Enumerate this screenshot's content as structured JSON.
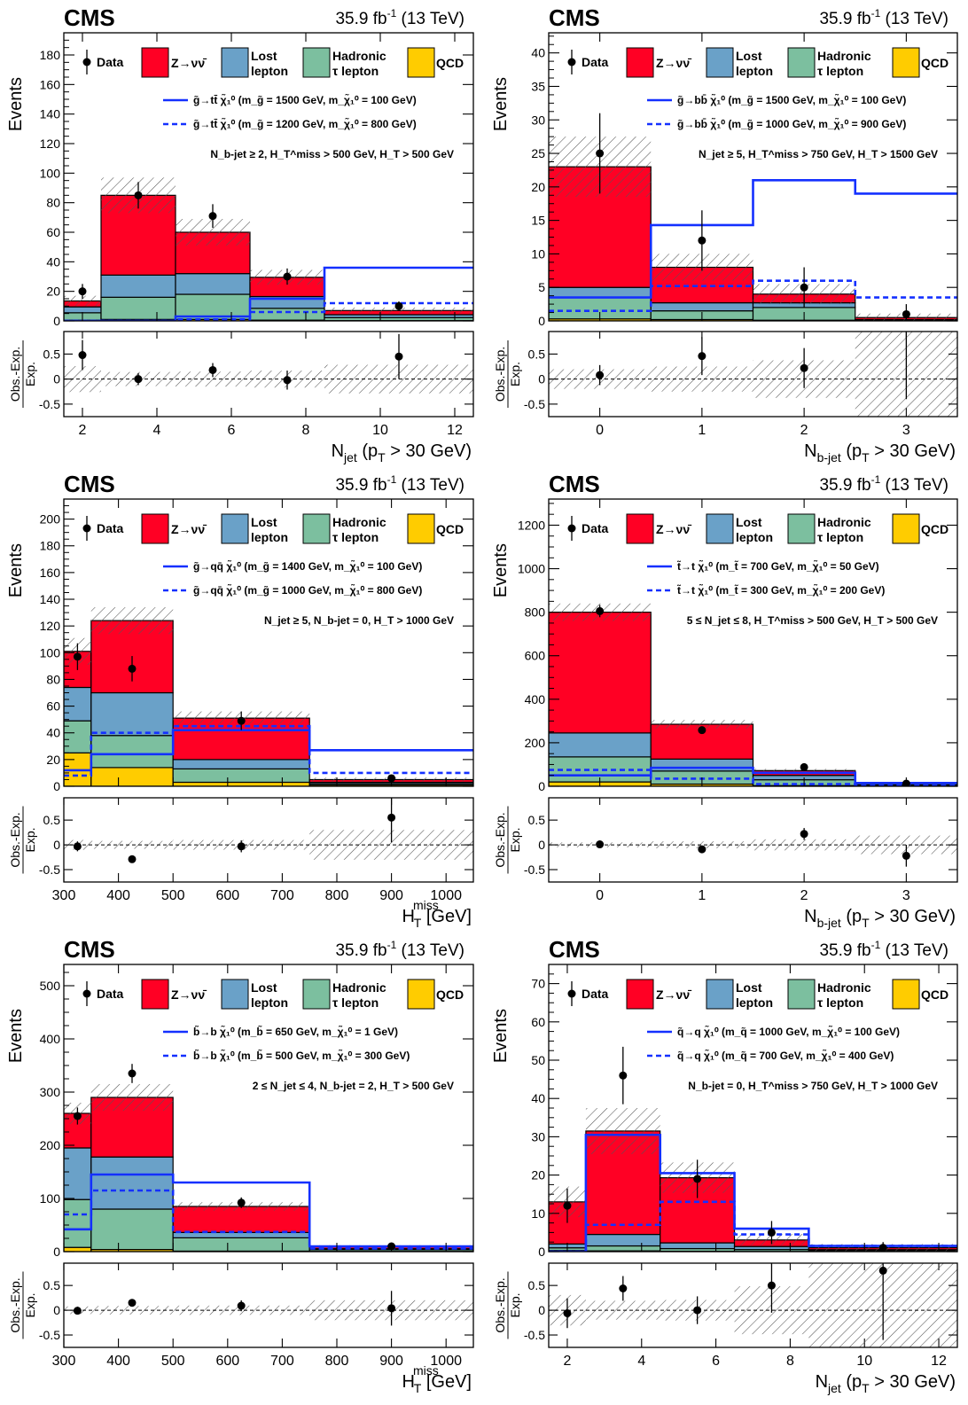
{
  "colors": {
    "znunu": "#ff0024",
    "lostlep": "#6aa1c8",
    "tau": "#7cbf9f",
    "qcd": "#ffcc00",
    "signal": "#1430ff"
  },
  "chart_data": [
    {
      "type": "bar",
      "cms": "CMS",
      "lumi": "35.9 fb",
      "lumi_sup": "-1",
      "lumi_tail": " (13 TeV)",
      "xlabel": "N",
      "xlabel_sub": "jet",
      "xlabel_rest": " (p",
      "xlabel_sub2": "T",
      "xlabel_rest2": " > 30 GeV)",
      "ylabel": "Events",
      "ratio_ylabel_num": "Obs.-Exp.",
      "ratio_ylabel_den": "Exp.",
      "legend": {
        "data": "Data",
        "znunu": "Z→νν̄",
        "lost1": "Lost",
        "lost2": "lepton",
        "tau1": "Hadronic",
        "tau2": "τ lepton",
        "qcd": "QCD"
      },
      "signal_labels": [
        "g̃→tt̄ χ̃₁⁰ (m_g̃ = 1500 GeV, m_χ̃₁⁰ = 100 GeV)",
        "g̃→tt̄ χ̃₁⁰ (m_g̃ = 1200 GeV, m_χ̃₁⁰ = 800 GeV)"
      ],
      "selection": "N_b-jet ≥ 2, H_T^miss > 500 GeV, H_T > 500 GeV",
      "xlim": [
        1.5,
        12.5
      ],
      "xticks": [
        2,
        4,
        6,
        8,
        10,
        12
      ],
      "ylim": [
        0,
        195
      ],
      "yticks": [
        0,
        20,
        40,
        60,
        80,
        100,
        120,
        140,
        160,
        180
      ],
      "ratio_lim": [
        -0.75,
        0.95
      ],
      "ratio_ticks": [
        -0.5,
        0,
        0.5
      ],
      "bins": [
        [
          1.5,
          2.5
        ],
        [
          2.5,
          4.5
        ],
        [
          4.5,
          6.5
        ],
        [
          6.5,
          8.5
        ],
        [
          8.5,
          12.5
        ]
      ],
      "centers": [
        2,
        3.5,
        5.5,
        7.5,
        10.5
      ],
      "series": [
        {
          "key": "qcd",
          "values": [
            0.5,
            1,
            1,
            0.5,
            0.2
          ]
        },
        {
          "key": "tau",
          "values": [
            5,
            15,
            17,
            8,
            2
          ]
        },
        {
          "key": "lostlep",
          "values": [
            4,
            15,
            14,
            8,
            2
          ]
        },
        {
          "key": "znunu",
          "values": [
            4,
            54,
            28,
            13,
            2.8
          ]
        }
      ],
      "total": [
        13.5,
        85,
        60,
        29.5,
        7
      ],
      "unc": [
        3.5,
        12,
        9,
        5,
        2
      ],
      "data_points": [
        20,
        85,
        71,
        30,
        10
      ],
      "data_err": [
        5,
        9,
        8,
        5.5,
        3.2
      ],
      "signal_solid": [
        0,
        0,
        3,
        15,
        36
      ],
      "signal_dashed": [
        0,
        0,
        1,
        6,
        12
      ],
      "ratio": [
        0.48,
        0,
        0.18,
        -0.02,
        0.45
      ],
      "ratio_err": [
        0.3,
        0.12,
        0.14,
        0.19,
        0.45
      ]
    },
    {
      "type": "bar",
      "cms": "CMS",
      "lumi": "35.9 fb",
      "lumi_sup": "-1",
      "lumi_tail": " (13 TeV)",
      "xlabel": "N",
      "xlabel_sub": "b-jet",
      "xlabel_rest": " (p",
      "xlabel_sub2": "T",
      "xlabel_rest2": " > 30 GeV)",
      "ylabel": "Events",
      "ratio_ylabel_num": "Obs.-Exp.",
      "ratio_ylabel_den": "Exp.",
      "legend": {
        "data": "Data",
        "znunu": "Z→νν̄",
        "lost1": "Lost",
        "lost2": "lepton",
        "tau1": "Hadronic",
        "tau2": "τ lepton",
        "qcd": "QCD"
      },
      "signal_labels": [
        "g̃→bb̄ χ̃₁⁰ (m_g̃ = 1500 GeV, m_χ̃₁⁰ = 100 GeV)",
        "g̃→bb̄ χ̃₁⁰ (m_g̃ = 1000 GeV, m_χ̃₁⁰ = 900 GeV)"
      ],
      "selection": "N_jet ≥ 5, H_T^miss > 750 GeV, H_T > 1500 GeV",
      "xlim": [
        -0.5,
        3.5
      ],
      "xticks": [
        0,
        1,
        2,
        3
      ],
      "ylim": [
        0,
        43
      ],
      "yticks": [
        0,
        5,
        10,
        15,
        20,
        25,
        30,
        35,
        40
      ],
      "ratio_lim": [
        -0.75,
        0.95
      ],
      "ratio_ticks": [
        -0.5,
        0,
        0.5
      ],
      "bins": [
        [
          -0.5,
          0.5
        ],
        [
          0.5,
          1.5
        ],
        [
          1.5,
          2.5
        ],
        [
          2.5,
          3.5
        ]
      ],
      "centers": [
        0,
        1,
        2,
        3
      ],
      "series": [
        {
          "key": "qcd",
          "values": [
            0.3,
            0.2,
            0.1,
            0.05
          ]
        },
        {
          "key": "tau",
          "values": [
            3.2,
            1.3,
            1.9,
            0.1
          ]
        },
        {
          "key": "lostlep",
          "values": [
            1.5,
            1.2,
            0.7,
            0.05
          ]
        },
        {
          "key": "znunu",
          "values": [
            18,
            5.3,
            1.3,
            0.3
          ]
        }
      ],
      "total": [
        23,
        8,
        4,
        0.5
      ],
      "unc": [
        4.5,
        2,
        1.5,
        0.6
      ],
      "data_points": [
        25,
        12,
        5,
        1
      ],
      "data_err": [
        6,
        4.5,
        3,
        1.5
      ],
      "signal_solid": [
        3.5,
        14.3,
        21,
        19
      ],
      "signal_dashed": [
        1.5,
        5.2,
        6,
        3.5
      ],
      "ratio": [
        0.08,
        0.46,
        0.22,
        1.0
      ],
      "ratio_err": [
        0.2,
        0.38,
        0.4,
        1.4
      ]
    },
    {
      "type": "bar",
      "cms": "CMS",
      "lumi": "35.9 fb",
      "lumi_sup": "-1",
      "lumi_tail": " (13 TeV)",
      "xlabel": "H",
      "xlabel_sub": "T",
      "xlabel_sup": "miss",
      "xlabel_rest": " [GeV]",
      "ylabel": "Events",
      "ratio_ylabel_num": "Obs.-Exp.",
      "ratio_ylabel_den": "Exp.",
      "legend": {
        "data": "Data",
        "znunu": "Z→νν̄",
        "lost1": "Lost",
        "lost2": "lepton",
        "tau1": "Hadronic",
        "tau2": "τ lepton",
        "qcd": "QCD"
      },
      "signal_labels": [
        "g̃→qq̄ χ̃₁⁰ (m_g̃ = 1400 GeV, m_χ̃₁⁰ = 100 GeV)",
        "g̃→qq̄ χ̃₁⁰ (m_g̃ = 1000 GeV, m_χ̃₁⁰ = 800 GeV)"
      ],
      "selection": "N_jet ≥ 5, N_b-jet = 0, H_T > 1000 GeV",
      "xlim": [
        300,
        1050
      ],
      "xticks": [
        300,
        400,
        500,
        600,
        700,
        800,
        900,
        1000
      ],
      "ylim": [
        0,
        215
      ],
      "yticks": [
        0,
        20,
        40,
        60,
        80,
        100,
        120,
        140,
        160,
        180,
        200
      ],
      "ratio_lim": [
        -0.75,
        0.95
      ],
      "ratio_ticks": [
        -0.5,
        0,
        0.5
      ],
      "bins": [
        [
          300,
          350
        ],
        [
          350,
          500
        ],
        [
          500,
          750
        ],
        [
          750,
          1050
        ]
      ],
      "centers": [
        325,
        425,
        625,
        900
      ],
      "series": [
        {
          "key": "qcd",
          "values": [
            25,
            14,
            3,
            1
          ]
        },
        {
          "key": "tau",
          "values": [
            24,
            24,
            10,
            1
          ]
        },
        {
          "key": "lostlep",
          "values": [
            25,
            32,
            7,
            1
          ]
        },
        {
          "key": "znunu",
          "values": [
            27,
            54,
            31,
            2
          ]
        }
      ],
      "total": [
        101,
        124,
        51,
        5
      ],
      "unc": [
        10,
        10,
        5,
        1.5
      ],
      "data_points": [
        97,
        88,
        49,
        6
      ],
      "data_err": [
        10,
        9.5,
        7,
        2.5
      ],
      "signal_solid": [
        12,
        24,
        42,
        27
      ],
      "signal_dashed": [
        8,
        40,
        45,
        10
      ],
      "ratio": [
        -0.03,
        -0.29,
        -0.03,
        0.55
      ],
      "ratio_err": [
        0.1,
        0.07,
        0.12,
        0.5
      ]
    },
    {
      "type": "bar",
      "cms": "CMS",
      "lumi": "35.9 fb",
      "lumi_sup": "-1",
      "lumi_tail": " (13 TeV)",
      "xlabel": "N",
      "xlabel_sub": "b-jet",
      "xlabel_rest": " (p",
      "xlabel_sub2": "T",
      "xlabel_rest2": " > 30 GeV)",
      "ylabel": "Events",
      "ratio_ylabel_num": "Obs.-Exp.",
      "ratio_ylabel_den": "Exp.",
      "legend": {
        "data": "Data",
        "znunu": "Z→νν̄",
        "lost1": "Lost",
        "lost2": "lepton",
        "tau1": "Hadronic",
        "tau2": "τ lepton",
        "qcd": "QCD"
      },
      "signal_labels": [
        "t̃→t χ̃₁⁰ (m_t̃ = 700 GeV, m_χ̃₁⁰ = 50 GeV)",
        "t̃→t χ̃₁⁰ (m_t̃ = 300 GeV, m_χ̃₁⁰ = 200 GeV)"
      ],
      "selection": "5 ≤ N_jet ≤ 8, H_T^miss > 500 GeV, H_T > 500 GeV",
      "xlim": [
        -0.5,
        3.5
      ],
      "xticks": [
        0,
        1,
        2,
        3
      ],
      "ylim": [
        0,
        1320
      ],
      "yticks": [
        0,
        200,
        400,
        600,
        800,
        1000,
        1200
      ],
      "ratio_lim": [
        -0.75,
        0.95
      ],
      "ratio_ticks": [
        -0.5,
        0,
        0.5
      ],
      "bins": [
        [
          -0.5,
          0.5
        ],
        [
          0.5,
          1.5
        ],
        [
          1.5,
          2.5
        ],
        [
          2.5,
          3.5
        ]
      ],
      "centers": [
        0,
        1,
        2,
        3
      ],
      "series": [
        {
          "key": "qcd",
          "values": [
            20,
            10,
            3,
            1
          ]
        },
        {
          "key": "tau",
          "values": [
            115,
            60,
            27,
            6
          ]
        },
        {
          "key": "lostlep",
          "values": [
            110,
            55,
            20,
            6
          ]
        },
        {
          "key": "znunu",
          "values": [
            555,
            160,
            22,
            3
          ]
        }
      ],
      "total": [
        800,
        285,
        72,
        16
      ],
      "unc": [
        40,
        20,
        8,
        3
      ],
      "data_points": [
        805,
        258,
        88,
        12
      ],
      "data_err": [
        28,
        16,
        9,
        4
      ],
      "signal_solid": [
        50,
        85,
        62,
        15
      ],
      "signal_dashed": [
        75,
        35,
        10,
        3
      ],
      "ratio": [
        0.01,
        -0.09,
        0.22,
        -0.22
      ],
      "ratio_err": [
        0.04,
        0.06,
        0.12,
        0.22
      ]
    },
    {
      "type": "bar",
      "cms": "CMS",
      "lumi": "35.9 fb",
      "lumi_sup": "-1",
      "lumi_tail": " (13 TeV)",
      "xlabel": "H",
      "xlabel_sub": "T",
      "xlabel_sup": "miss",
      "xlabel_rest": " [GeV]",
      "ylabel": "Events",
      "ratio_ylabel_num": "Obs.-Exp.",
      "ratio_ylabel_den": "Exp.",
      "legend": {
        "data": "Data",
        "znunu": "Z→νν̄",
        "lost1": "Lost",
        "lost2": "lepton",
        "tau1": "Hadronic",
        "tau2": "τ lepton",
        "qcd": "QCD"
      },
      "signal_labels": [
        "b̃→b χ̃₁⁰ (m_b̃ = 650 GeV, m_χ̃₁⁰ = 1 GeV)",
        "b̃→b χ̃₁⁰ (m_b̃ = 500 GeV, m_χ̃₁⁰ = 300 GeV)"
      ],
      "selection": "2 ≤ N_jet ≤ 4, N_b-jet = 2, H_T > 500 GeV",
      "xlim": [
        300,
        1050
      ],
      "xticks": [
        300,
        400,
        500,
        600,
        700,
        800,
        900,
        1000
      ],
      "ylim": [
        0,
        540
      ],
      "yticks": [
        0,
        100,
        200,
        300,
        400,
        500
      ],
      "ratio_lim": [
        -0.75,
        0.95
      ],
      "ratio_ticks": [
        -0.5,
        0,
        0.5
      ],
      "bins": [
        [
          300,
          350
        ],
        [
          350,
          500
        ],
        [
          500,
          750
        ],
        [
          750,
          1050
        ]
      ],
      "centers": [
        325,
        425,
        625,
        900
      ],
      "series": [
        {
          "key": "qcd",
          "values": [
            8,
            4,
            1,
            0.5
          ]
        },
        {
          "key": "tau",
          "values": [
            90,
            76,
            25,
            3
          ]
        },
        {
          "key": "lostlep",
          "values": [
            97,
            98,
            10,
            2
          ]
        },
        {
          "key": "znunu",
          "values": [
            65,
            112,
            49,
            4.5
          ]
        }
      ],
      "total": [
        260,
        290,
        85,
        10
      ],
      "unc": [
        20,
        25,
        8,
        2
      ],
      "data_points": [
        255,
        335,
        92,
        10
      ],
      "data_err": [
        16,
        18,
        10,
        3.5
      ],
      "signal_solid": [
        42,
        145,
        130,
        10
      ],
      "signal_dashed": [
        70,
        115,
        37,
        6
      ],
      "ratio": [
        -0.01,
        0.15,
        0.09,
        0.04
      ],
      "ratio_err": [
        0.07,
        0.07,
        0.11,
        0.35
      ]
    },
    {
      "type": "bar",
      "cms": "CMS",
      "lumi": "35.9 fb",
      "lumi_sup": "-1",
      "lumi_tail": " (13 TeV)",
      "xlabel": "N",
      "xlabel_sub": "jet",
      "xlabel_rest": " (p",
      "xlabel_sub2": "T",
      "xlabel_rest2": " > 30 GeV)",
      "ylabel": "Events",
      "ratio_ylabel_num": "Obs.-Exp.",
      "ratio_ylabel_den": "Exp.",
      "legend": {
        "data": "Data",
        "znunu": "Z→νν̄",
        "lost1": "Lost",
        "lost2": "lepton",
        "tau1": "Hadronic",
        "tau2": "τ lepton",
        "qcd": "QCD"
      },
      "signal_labels": [
        "q̃→q χ̃₁⁰ (m_q̃ = 1000 GeV, m_χ̃₁⁰ = 100 GeV)",
        "q̃→q χ̃₁⁰ (m_q̃ = 700 GeV, m_χ̃₁⁰ = 400 GeV)"
      ],
      "selection": "N_b-jet = 0, H_T^miss > 750 GeV, H_T > 1000 GeV",
      "xlim": [
        1.5,
        12.5
      ],
      "xticks": [
        2,
        4,
        6,
        8,
        10,
        12
      ],
      "ylim": [
        0,
        75
      ],
      "yticks": [
        0,
        10,
        20,
        30,
        40,
        50,
        60,
        70
      ],
      "ratio_lim": [
        -0.75,
        0.95
      ],
      "ratio_ticks": [
        -0.5,
        0,
        0.5
      ],
      "bins": [
        [
          1.5,
          2.5
        ],
        [
          2.5,
          4.5
        ],
        [
          4.5,
          6.5
        ],
        [
          6.5,
          8.5
        ],
        [
          8.5,
          12.5
        ]
      ],
      "centers": [
        2,
        3.5,
        5.5,
        7.5,
        10.5
      ],
      "series": [
        {
          "key": "qcd",
          "values": [
            0.3,
            0.2,
            0.1,
            0.05,
            0.02
          ]
        },
        {
          "key": "tau",
          "values": [
            0.7,
            1.3,
            0.7,
            0.5,
            0.3
          ]
        },
        {
          "key": "lostlep",
          "values": [
            1,
            3,
            1.5,
            0.8,
            0.2
          ]
        },
        {
          "key": "znunu",
          "values": [
            11,
            27,
            17,
            1.7,
            0.5
          ]
        }
      ],
      "total": [
        13,
        31.5,
        19.3,
        3.1,
        1
      ],
      "unc": [
        4,
        6,
        4,
        1.5,
        1
      ],
      "data_points": [
        12,
        46,
        19,
        5,
        1
      ],
      "data_err": [
        4.5,
        7.5,
        5,
        3,
        1.5
      ],
      "signal_solid": [
        0,
        30.5,
        20.5,
        6,
        1.5
      ],
      "signal_dashed": [
        0,
        7,
        13,
        4.5,
        1.5
      ],
      "ratio": [
        -0.06,
        0.44,
        0.0,
        0.5,
        0.8
      ],
      "ratio_err": [
        0.3,
        0.25,
        0.28,
        0.55,
        1.4
      ]
    }
  ]
}
